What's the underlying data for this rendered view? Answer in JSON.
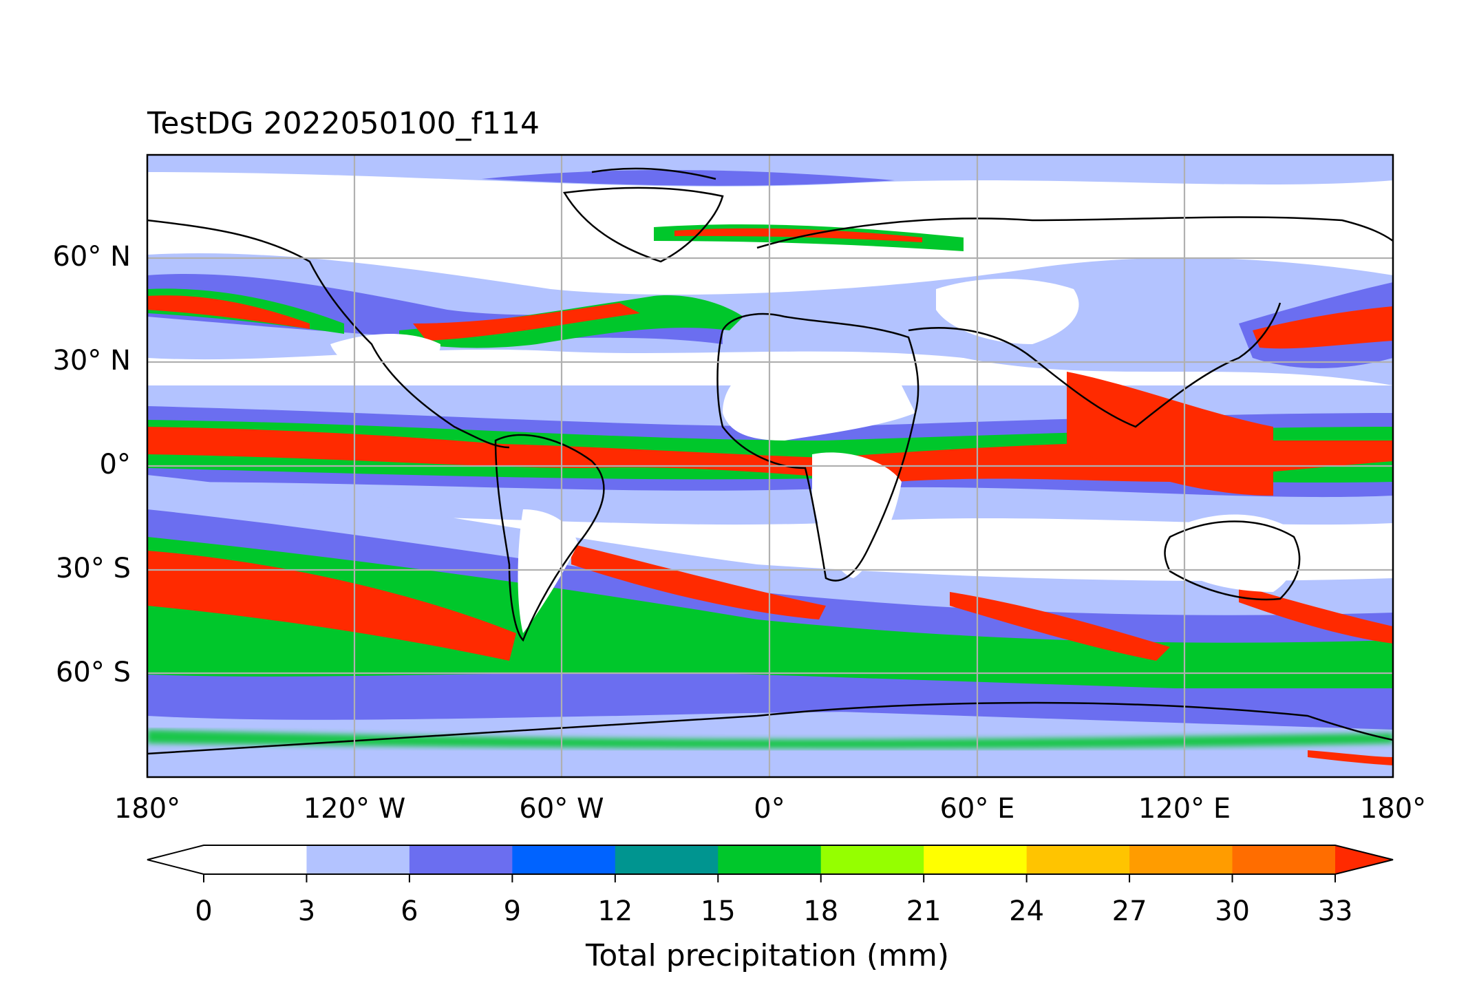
{
  "title": "TestDG 2022050100_f114",
  "lat_ticks": [
    "60° N",
    "30° N",
    "0°",
    "30° S",
    "60° S"
  ],
  "lon_ticks": [
    "180°",
    "120° W",
    "60° W",
    "0°",
    "60° E",
    "120° E",
    "180°"
  ],
  "colorbar": {
    "label": "Total precipitation (mm)",
    "ticks": [
      "0",
      "3",
      "6",
      "9",
      "12",
      "15",
      "18",
      "21",
      "24",
      "27",
      "30",
      "33"
    ],
    "colors": [
      "#ffffff",
      "#b3c3ff",
      "#6b6ef0",
      "#0063ff",
      "#009590",
      "#00c72b",
      "#95ff00",
      "#ffff00",
      "#ffc400",
      "#ff9c00",
      "#ff6d00",
      "#ff2a00"
    ],
    "extend": "both"
  },
  "map": {
    "projection": "PlateCarree",
    "lon_range": [
      -180,
      180
    ],
    "lat_range": [
      -90,
      90
    ],
    "gridlines": true,
    "coastlines": true,
    "field": "Total precipitation"
  }
}
